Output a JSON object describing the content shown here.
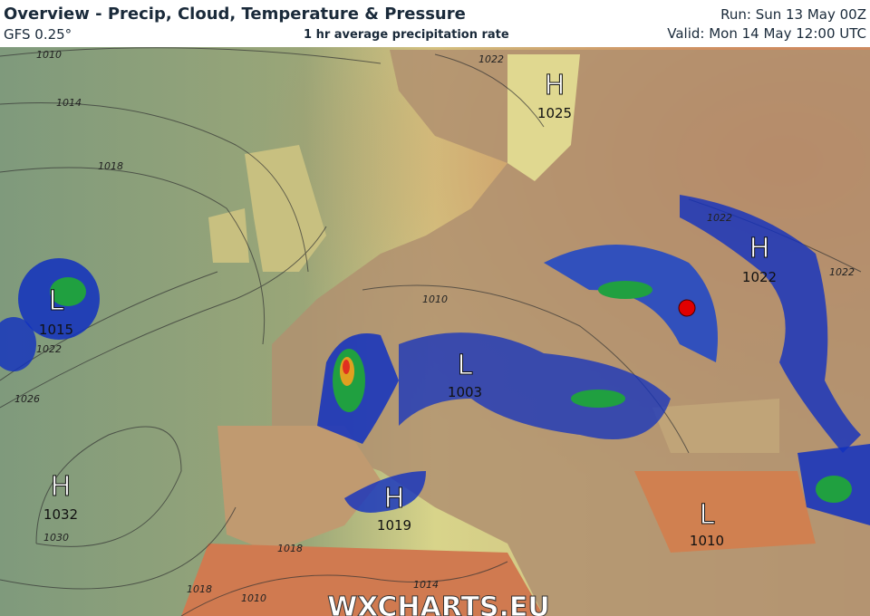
{
  "header": {
    "title": "Overview - Precip, Cloud, Temperature & Pressure",
    "model": "GFS 0.25°",
    "subtitle": "1 hr average precipitation rate",
    "run": "Run: Sun 13 May 00Z",
    "valid": "Valid: Mon 14 May 12:00 UTC"
  },
  "map": {
    "pressure_centers": [
      {
        "type": "H",
        "value": "1025"
      },
      {
        "type": "H",
        "value": "1022"
      },
      {
        "type": "L",
        "value": "1015"
      },
      {
        "type": "L",
        "value": "1003"
      },
      {
        "type": "H",
        "value": "1032"
      },
      {
        "type": "H",
        "value": "1019"
      },
      {
        "type": "L",
        "value": "1010"
      }
    ],
    "isobar_labels": [
      "1010",
      "1014",
      "1018",
      "1022",
      "1022",
      "1022",
      "1010",
      "1022",
      "1026",
      "1030",
      "1018",
      "1018",
      "1010",
      "1014"
    ],
    "marker_color": "#e00000",
    "colors": {
      "sea": "#8a9a70",
      "land": "#b89a70",
      "hot": "#d8704a",
      "rain_light": "#6aa8e0",
      "rain_mod": "#1030c0",
      "rain_heavy": "#20a040"
    }
  },
  "watermark": "WXCHARTS.EU"
}
